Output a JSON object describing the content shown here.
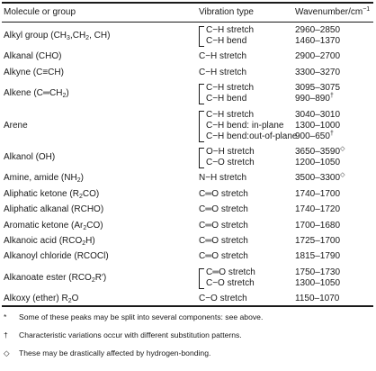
{
  "header": {
    "molecule": "Molecule or group",
    "vibration": "Vibration type",
    "wavenumber_label": "Wavenumber/cm",
    "wavenumber_exp": "−1"
  },
  "rows": [
    {
      "mol": [
        [
          "Alkyl group (CH",
          "n"
        ],
        [
          "3",
          "s"
        ],
        [
          ",CH",
          "n"
        ],
        [
          "2",
          "s"
        ],
        [
          ", CH)",
          "n"
        ]
      ],
      "vib": [
        "C−H stretch",
        "C−H bend"
      ],
      "wav": [
        [
          [
            "2960–2850",
            "n"
          ]
        ],
        [
          [
            "1460–1370",
            "n"
          ]
        ]
      ]
    },
    {
      "mol": [
        [
          "Alkanal (CHO)",
          "n"
        ]
      ],
      "vib": [
        "C−H stretch"
      ],
      "wav": [
        [
          [
            "2900–2700",
            "n"
          ]
        ]
      ]
    },
    {
      "mol": [
        [
          "Alkyne (C≡CH)",
          "n"
        ]
      ],
      "vib": [
        "C−H stretch"
      ],
      "wav": [
        [
          [
            "3300–3270",
            "n"
          ]
        ]
      ]
    },
    {
      "mol": [
        [
          "Alkene (C═CH",
          "n"
        ],
        [
          "2",
          "s"
        ],
        [
          ")",
          "n"
        ]
      ],
      "vib": [
        "C−H stretch",
        "C−H bend"
      ],
      "wav": [
        [
          [
            "3095–3075",
            "n"
          ]
        ],
        [
          [
            "990–890",
            "n"
          ],
          [
            "†",
            "p"
          ]
        ]
      ]
    },
    {
      "mol": [
        [
          "Arene",
          "n"
        ]
      ],
      "vib": [
        "C−H stretch",
        "C−H bend: in-plane",
        "C−H bend:out-of-plane"
      ],
      "wav": [
        [
          [
            "3040–3010",
            "n"
          ]
        ],
        [
          [
            "1300–1000",
            "n"
          ]
        ],
        [
          [
            "900–650",
            "n"
          ],
          [
            "†",
            "p"
          ]
        ]
      ]
    },
    {
      "mol": [
        [
          "Alkanol (OH)",
          "n"
        ]
      ],
      "vib": [
        "O−H stretch",
        "C−O stretch"
      ],
      "wav": [
        [
          [
            "3650–3590",
            "n"
          ],
          [
            "◇",
            "p"
          ]
        ],
        [
          [
            "1200–1050",
            "n"
          ]
        ]
      ]
    },
    {
      "mol": [
        [
          "Amine, amide (NH",
          "n"
        ],
        [
          "2",
          "s"
        ],
        [
          ")",
          "n"
        ]
      ],
      "vib": [
        "N−H stretch"
      ],
      "wav": [
        [
          [
            "3500–3300",
            "n"
          ],
          [
            "◇",
            "p"
          ]
        ]
      ]
    },
    {
      "mol": [
        [
          "Aliphatic ketone (R",
          "n"
        ],
        [
          "2",
          "s"
        ],
        [
          "CO)",
          "n"
        ]
      ],
      "vib": [
        "C═O stretch"
      ],
      "wav": [
        [
          [
            "1740–1700",
            "n"
          ]
        ]
      ]
    },
    {
      "mol": [
        [
          "Aliphatic alkanal (RCHO)",
          "n"
        ]
      ],
      "vib": [
        "C═O stretch"
      ],
      "wav": [
        [
          [
            "1740–1720",
            "n"
          ]
        ]
      ]
    },
    {
      "mol": [
        [
          "Aromatic ketone (Ar",
          "n"
        ],
        [
          "2",
          "s"
        ],
        [
          "CO)",
          "n"
        ]
      ],
      "vib": [
        "C═O stretch"
      ],
      "wav": [
        [
          [
            "1700–1680",
            "n"
          ]
        ]
      ]
    },
    {
      "mol": [
        [
          "Alkanoic acid (RCO",
          "n"
        ],
        [
          "2",
          "s"
        ],
        [
          "H)",
          "n"
        ]
      ],
      "vib": [
        "C═O stretch"
      ],
      "wav": [
        [
          [
            "1725–1700",
            "n"
          ]
        ]
      ]
    },
    {
      "mol": [
        [
          "Alkanoyl chloride (RCOCl)",
          "n"
        ]
      ],
      "vib": [
        "C═O stretch"
      ],
      "wav": [
        [
          [
            "1815–1790",
            "n"
          ]
        ]
      ]
    },
    {
      "mol": [
        [
          "Alkanoate ester (RCO",
          "n"
        ],
        [
          "2",
          "s"
        ],
        [
          "R′)",
          "n"
        ]
      ],
      "vib": [
        "C═O stretch",
        "C−O stretch"
      ],
      "wav": [
        [
          [
            "1750–1730",
            "n"
          ]
        ],
        [
          [
            "1300–1050",
            "n"
          ]
        ]
      ]
    },
    {
      "mol": [
        [
          "Alkoxy (ether) R",
          "n"
        ],
        [
          "2",
          "s"
        ],
        [
          "O",
          "n"
        ]
      ],
      "vib": [
        "C−O stretch"
      ],
      "wav": [
        [
          [
            "1150–1070",
            "n"
          ]
        ]
      ]
    }
  ],
  "footnotes": [
    {
      "symbol": "*",
      "text": "Some of these peaks may be split into several components: see above."
    },
    {
      "symbol": "†",
      "text": "Characteristic variations occur with different substitution patterns."
    },
    {
      "symbol": "◇",
      "text": "These may be drastically affected by hydrogen-bonding."
    }
  ]
}
